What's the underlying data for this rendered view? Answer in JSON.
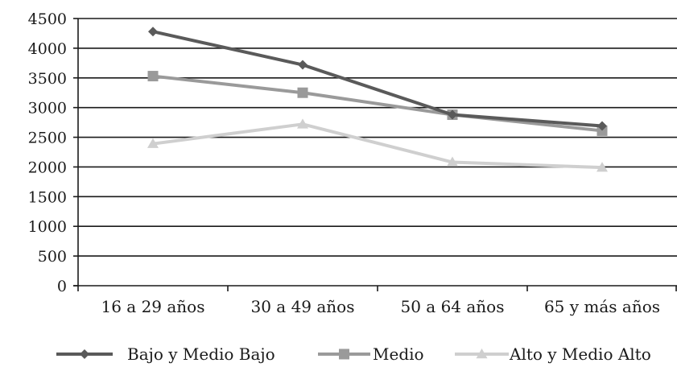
{
  "chart_data": {
    "type": "line",
    "title": "",
    "xlabel": "",
    "ylabel": "",
    "categories": [
      "16 a 29 años",
      "30 a 49 años",
      "50 a 64 años",
      "65 y más años"
    ],
    "ylim": [
      0,
      4500
    ],
    "yticks": [
      0,
      500,
      1000,
      1500,
      2000,
      2500,
      3000,
      3500,
      4000,
      4500
    ],
    "grid": "horizontal",
    "legend_position": "bottom",
    "series": [
      {
        "name": "Bajo y Medio Bajo",
        "values": [
          4280,
          3720,
          2880,
          2690
        ],
        "color": "#5a5a5a",
        "marker": "diamond"
      },
      {
        "name": "Medio",
        "values": [
          3530,
          3250,
          2880,
          2610
        ],
        "color": "#9a9a9a",
        "marker": "square"
      },
      {
        "name": "Alto y Medio Alto",
        "values": [
          2390,
          2720,
          2080,
          1990
        ],
        "color": "#cfcfcf",
        "marker": "triangle"
      }
    ]
  }
}
